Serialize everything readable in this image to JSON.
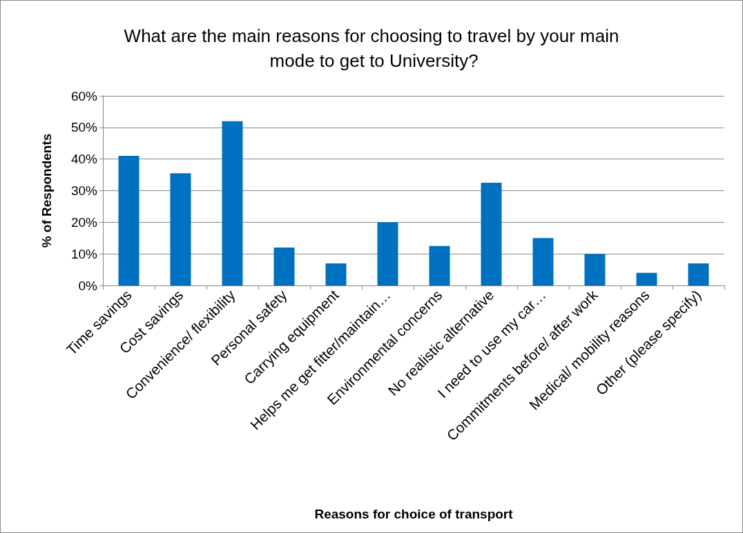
{
  "chart_data": {
    "type": "bar",
    "title": "What are the main reasons for choosing to travel by your main mode to get to University?",
    "xlabel": "Reasons for choice of transport",
    "ylabel": "% of Respondents",
    "categories": [
      "Time savings",
      "Cost savings",
      "Convenience/ flexibility",
      "Personal safety",
      "Carrying equipment",
      "Helps me get fitter/maintain…",
      "Environmental concerns",
      "No realistic alternative",
      "I need to use my car…",
      "Commitments before/ after work",
      "Medical/ mobility reasons",
      "Other (please specify)"
    ],
    "values": [
      41,
      35.5,
      52,
      12,
      7,
      20,
      12.5,
      32.5,
      15,
      10,
      4,
      7
    ],
    "color": "#0070c0",
    "ylim": [
      0,
      60
    ],
    "yticks": [
      {
        "value": 0,
        "label": "0%"
      },
      {
        "value": 10,
        "label": "10%"
      },
      {
        "value": 20,
        "label": "20%"
      },
      {
        "value": 30,
        "label": "30%"
      },
      {
        "value": 40,
        "label": "40%"
      },
      {
        "value": 50,
        "label": "50%"
      },
      {
        "value": 60,
        "label": "60%"
      }
    ],
    "grid": "y"
  }
}
